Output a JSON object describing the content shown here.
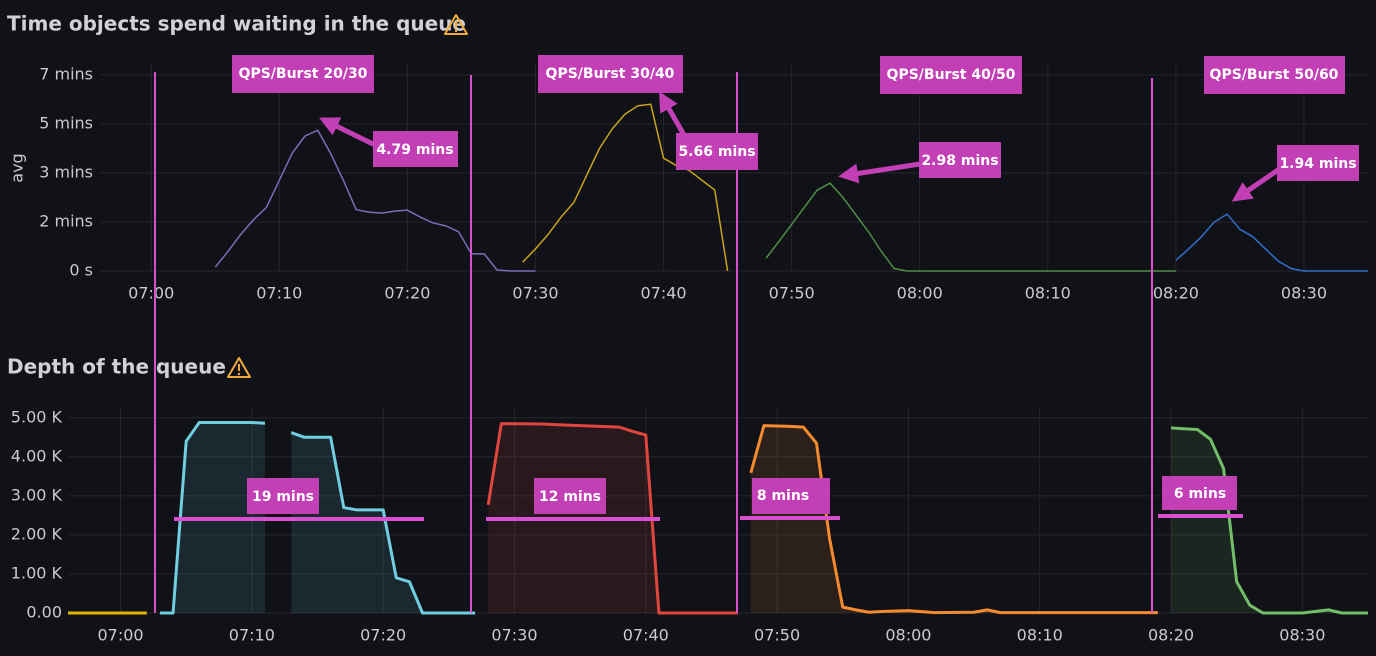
{
  "chart_data": [
    {
      "type": "line",
      "title": "Time objects spend waiting in the queue",
      "ylabel": "avg",
      "xlim": [
        "06:56",
        "08:35"
      ],
      "xticks": [
        "07:00",
        "07:10",
        "07:20",
        "07:30",
        "07:40",
        "07:50",
        "08:00",
        "08:10",
        "08:20",
        "08:30"
      ],
      "ylim": [
        0,
        420
      ],
      "yticks": [
        {
          "value": 0,
          "label": "0 s"
        },
        {
          "value": 100,
          "label": "2 mins"
        },
        {
          "value": 200,
          "label": "3 mins"
        },
        {
          "value": 300,
          "label": "5 mins"
        },
        {
          "value": 400,
          "label": "7 mins"
        }
      ],
      "grid": true,
      "series": [
        {
          "color": "#7b6eb8",
          "x": [
            "07:05",
            "07:06",
            "07:07",
            "07:08",
            "07:09",
            "07:10",
            "07:11",
            "07:12",
            "07:13",
            "07:14",
            "07:15",
            "07:16",
            "07:17",
            "07:18",
            "07:19",
            "07:20",
            "07:21",
            "07:22",
            "07:23",
            "07:24",
            "07:25",
            "07:26",
            "07:27",
            "07:28",
            "07:29",
            "07:30"
          ],
          "values": [
            8,
            40,
            75,
            105,
            130,
            185,
            240,
            275,
            287,
            240,
            185,
            125,
            120,
            118,
            122,
            124,
            110,
            98,
            92,
            80,
            35,
            35,
            2,
            0,
            0,
            0
          ]
        },
        {
          "color": "#c9a21b",
          "x": [
            "07:29",
            "07:30",
            "07:31",
            "07:32",
            "07:33",
            "07:34",
            "07:35",
            "07:36",
            "07:37",
            "07:38",
            "07:39",
            "07:40",
            "07:41",
            "07:42",
            "07:43",
            "07:44",
            "07:45"
          ],
          "values": [
            18,
            45,
            75,
            110,
            140,
            195,
            250,
            290,
            320,
            337,
            340,
            230,
            215,
            205,
            185,
            165,
            0
          ]
        },
        {
          "color": "#4f8f45",
          "x": [
            "07:48",
            "07:49",
            "07:50",
            "07:51",
            "07:52",
            "07:53",
            "07:54",
            "07:55",
            "07:56",
            "07:57",
            "07:58",
            "07:59",
            "08:05",
            "08:10",
            "08:15",
            "08:20"
          ],
          "values": [
            26,
            60,
            95,
            130,
            165,
            179,
            150,
            115,
            80,
            40,
            5,
            0,
            0,
            0,
            0,
            0
          ]
        },
        {
          "color": "#2f6fc9",
          "x": [
            "08:20",
            "08:21",
            "08:22",
            "08:23",
            "08:24",
            "08:25",
            "08:26",
            "08:27",
            "08:28",
            "08:29",
            "08:30",
            "08:35"
          ],
          "values": [
            22,
            45,
            70,
            100,
            116,
            85,
            70,
            45,
            20,
            5,
            0,
            0
          ]
        }
      ]
    },
    {
      "type": "area",
      "title": "Depth of the queue",
      "xlim": [
        "06:56",
        "08:35"
      ],
      "xticks": [
        "07:00",
        "07:10",
        "07:20",
        "07:30",
        "07:40",
        "07:50",
        "08:00",
        "08:10",
        "08:20",
        "08:30"
      ],
      "ylim": [
        0,
        5250
      ],
      "yticks": [
        {
          "value": 0,
          "label": "0.00"
        },
        {
          "value": 1000,
          "label": "1.00 K"
        },
        {
          "value": 2000,
          "label": "2.00 K"
        },
        {
          "value": 3000,
          "label": "3.00 K"
        },
        {
          "value": 4000,
          "label": "4.00 K"
        },
        {
          "value": 5000,
          "label": "5.00 K"
        }
      ],
      "grid": true,
      "series": [
        {
          "color": "#e0b400",
          "x": [
            "06:56",
            "07:02"
          ],
          "values": [
            0,
            0
          ]
        },
        {
          "color": "#6fcfe0",
          "x": [
            "07:03",
            "07:04",
            "07:05",
            "07:06",
            "07:08",
            "07:10",
            "07:11",
            "07:12",
            "07:13",
            "07:14",
            "07:16",
            "07:17",
            "07:18",
            "07:20",
            "07:21",
            "07:22",
            "07:23",
            "07:27"
          ],
          "values": [
            0,
            0,
            4400,
            4880,
            4880,
            4880,
            4860,
            null,
            4620,
            4500,
            4500,
            2700,
            2640,
            2640,
            900,
            800,
            0,
            0
          ]
        },
        {
          "color": "#e0463e",
          "x": [
            "07:28",
            "07:29",
            "07:32",
            "07:35",
            "07:38",
            "07:39",
            "07:40",
            "07:41",
            "07:47"
          ],
          "values": [
            2770,
            4850,
            4840,
            4800,
            4760,
            4650,
            4560,
            0,
            0
          ]
        },
        {
          "color": "#f58a2e",
          "x": [
            "07:48",
            "07:49",
            "07:51",
            "07:52",
            "07:53",
            "07:54",
            "07:55",
            "07:56",
            "07:57",
            "07:58",
            "08:00",
            "08:02",
            "08:05",
            "08:06",
            "08:07",
            "08:10",
            "08:15",
            "08:19"
          ],
          "values": [
            3590,
            4800,
            4780,
            4760,
            4350,
            1900,
            150,
            80,
            20,
            40,
            60,
            10,
            20,
            80,
            10,
            10,
            10,
            10
          ]
        },
        {
          "color": "#73bf69",
          "x": [
            "08:20",
            "08:21",
            "08:22",
            "08:23",
            "08:24",
            "08:25",
            "08:26",
            "08:27",
            "08:30",
            "08:32",
            "08:33",
            "08:35"
          ],
          "values": [
            4740,
            4720,
            4700,
            4450,
            3700,
            800,
            200,
            0,
            0,
            80,
            0,
            0
          ]
        }
      ]
    }
  ],
  "annotations": {
    "phases": [
      "QPS/Burst 20/30",
      "QPS/Burst 30/40",
      "QPS/Burst 40/50",
      "QPS/Burst 50/60"
    ],
    "peaks": [
      "4.79 mins",
      "5.66 mins",
      "2.98 mins",
      "1.94 mins"
    ],
    "durations": [
      "19 mins",
      "12 mins",
      "8 mins",
      "6 mins"
    ]
  }
}
